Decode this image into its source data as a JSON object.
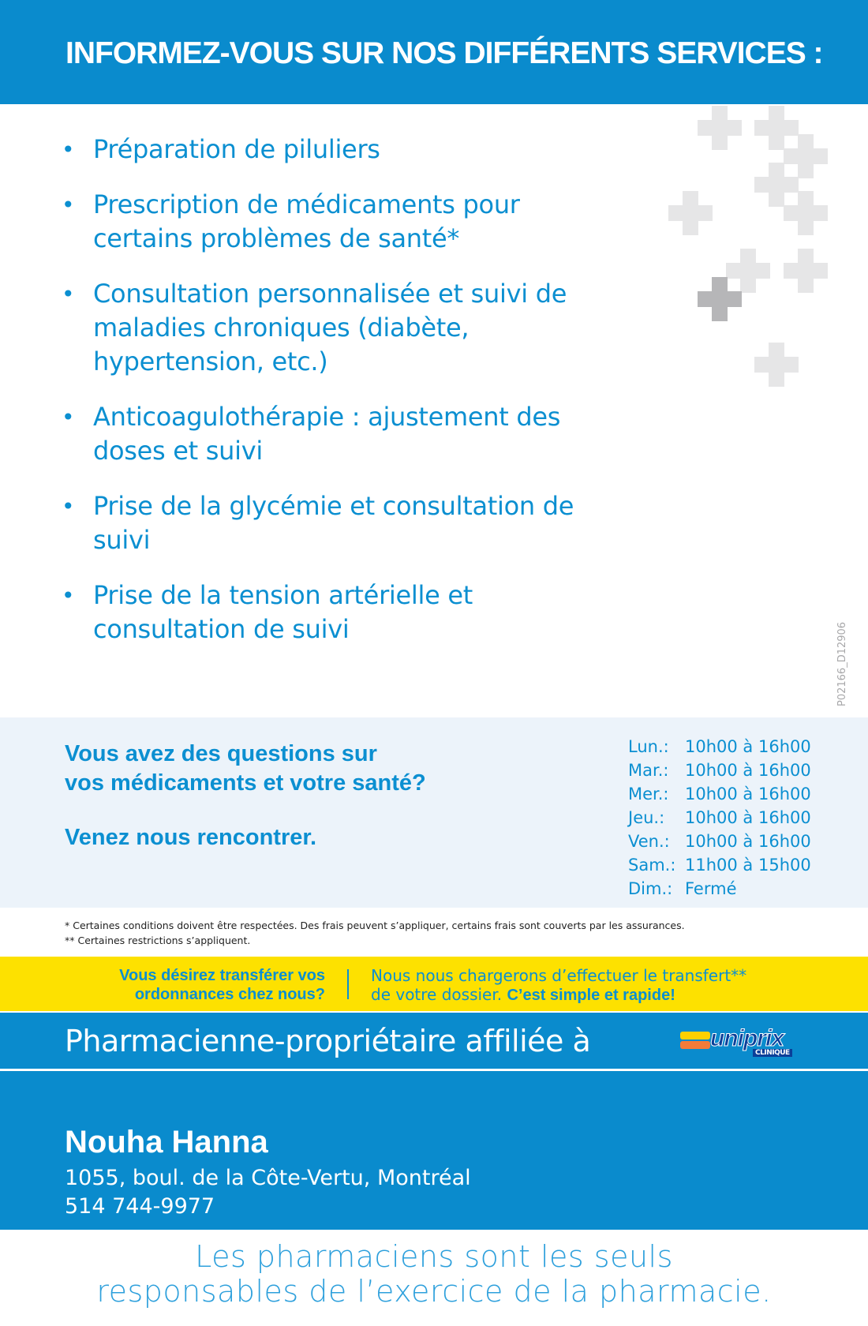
{
  "header": {
    "title": "INFORMEZ-VOUS SUR NOS DIFFÉRENTS SERVICES :"
  },
  "services": [
    "Préparation de piluliers",
    "Prescription de médicaments pour certains problèmes de santé*",
    "Consultation personnalisée et suivi de maladies chroniques (diabète, hypertension, etc.)",
    "Anticoagulothérapie : ajustement des doses et suivi",
    "Prise de la glycémie et consultation de suivi",
    "Prise de la tension artérielle et consultation de suivi"
  ],
  "code": "P02166_D12906",
  "questions": {
    "line1": "Vous avez des questions sur",
    "line2": "vos médicaments et votre santé?",
    "cta": "Venez nous rencontrer."
  },
  "hours": [
    {
      "day": "Lun.:",
      "time": "10h00 à 16h00"
    },
    {
      "day": "Mar.:",
      "time": "10h00 à 16h00"
    },
    {
      "day": "Mer.:",
      "time": "10h00 à 16h00"
    },
    {
      "day": "Jeu.:",
      "time": "10h00 à 16h00"
    },
    {
      "day": "Ven.:",
      "time": "10h00 à 16h00"
    },
    {
      "day": "Sam.:",
      "time": "11h00 à 15h00"
    },
    {
      "day": "Dim.:",
      "time": "Fermé"
    }
  ],
  "notes": [
    "* Certaines conditions doivent être respectées. Des frais peuvent s’appliquer, certains frais sont couverts par les assurances.",
    "** Certaines restrictions s’appliquent."
  ],
  "transfer": {
    "q1": "Vous désirez transférer vos",
    "q2": "ordonnances chez nous?",
    "a1": "Nous nous chargerons d’effectuer le transfert**",
    "a2": "de votre dossier.",
    "a3": "C’est simple et rapide!"
  },
  "affiliation": {
    "text": "Pharmacienne-propriétaire affiliée à",
    "logo": "uniprix",
    "logo_sub": "CLINIQUE"
  },
  "owner": {
    "name": "Nouha Hanna",
    "address": "1055, boul. de la Côte-Vertu, Montréal",
    "phone": "514 744-9977"
  },
  "tagline": {
    "line1": "Les pharmaciens sont les seuls",
    "line2": "responsables de l’exercice de la pharmacie."
  },
  "colors": {
    "blue": "#0a8bcd",
    "yellow": "#fde100",
    "light": "#ecf3fa"
  }
}
